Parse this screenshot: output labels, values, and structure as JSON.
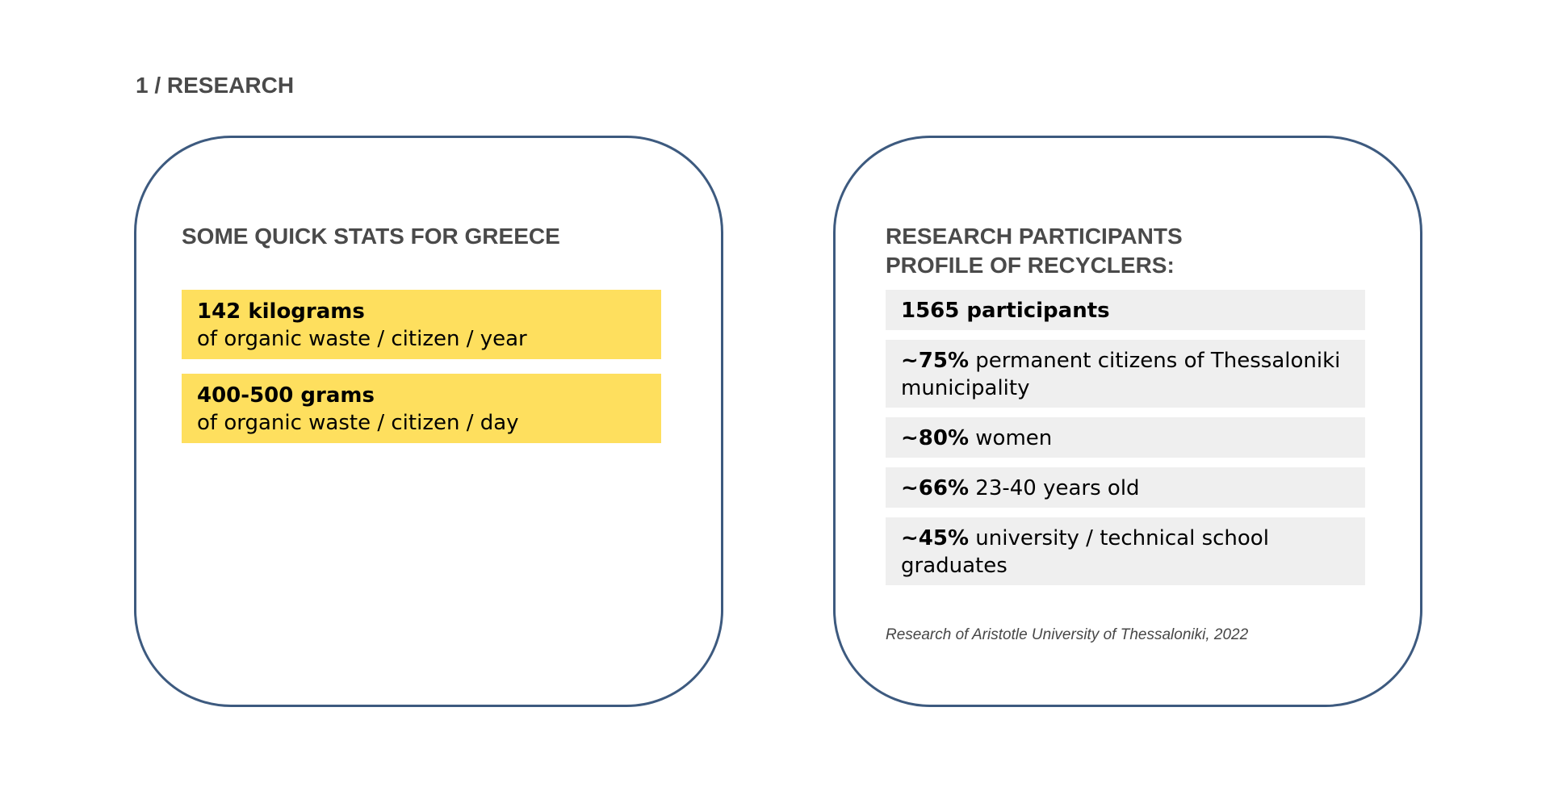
{
  "section_title": "1 / RESEARCH",
  "left_card": {
    "heading": "SOME QUICK STATS FOR GREECE",
    "stats": [
      {
        "strong": "142 kilograms",
        "rest": "of organic waste / citizen / year"
      },
      {
        "strong": "400-500 grams",
        "rest": "of organic waste / citizen / day"
      }
    ]
  },
  "right_card": {
    "heading": "RESEARCH PARTICIPANTS\nPROFILE OF RECYCLERS:",
    "items": [
      {
        "strong": "1565 participants",
        "rest": ""
      },
      {
        "strong": "~75%",
        "rest": " permanent citizens of Thessaloniki municipality"
      },
      {
        "strong": "~80%",
        "rest": " women"
      },
      {
        "strong": "~66%",
        "rest": " 23-40 years old"
      },
      {
        "strong": "~45%",
        "rest": " university / technical school graduates"
      }
    ],
    "source": "Research of Aristotle University of Thessaloniki, 2022"
  },
  "colors": {
    "card_border": "#3d5a7f",
    "stat_background": "#fedf5e",
    "profile_background": "#efefef",
    "heading_text": "#4a4a4a"
  }
}
